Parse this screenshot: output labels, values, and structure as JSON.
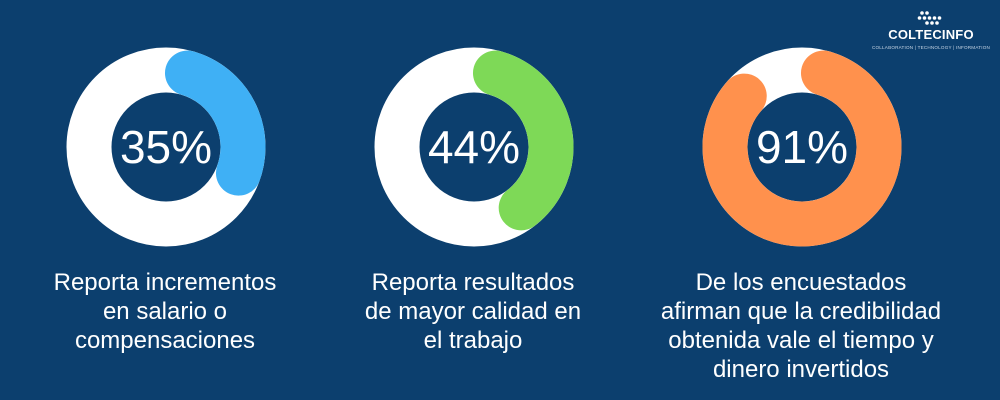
{
  "colors": {
    "background": "#0c3f6e",
    "track": "#ffffff",
    "text": "#ffffff"
  },
  "logo": {
    "name": "COLTECINFO",
    "tagline": "COLLABORATION | TECHNOLOGY | INFORMATION",
    "icon": "dots-cluster-icon"
  },
  "chart_data": [
    {
      "type": "pie",
      "value": 35,
      "label": "35%",
      "caption": [
        "Reporta incrementos",
        "en salario o",
        "compensaciones"
      ],
      "color": "#3fb0f5"
    },
    {
      "type": "pie",
      "value": 44,
      "label": "44%",
      "caption": [
        "Reporta resultados",
        "de mayor calidad en",
        "el trabajo"
      ],
      "color": "#7ed957"
    },
    {
      "type": "pie",
      "value": 91,
      "label": "91%",
      "caption": [
        "De los encuestados",
        "afirman que la credibilidad",
        "obtenida vale el tiempo y",
        "dinero invertidos"
      ],
      "color": "#ff914d"
    }
  ]
}
